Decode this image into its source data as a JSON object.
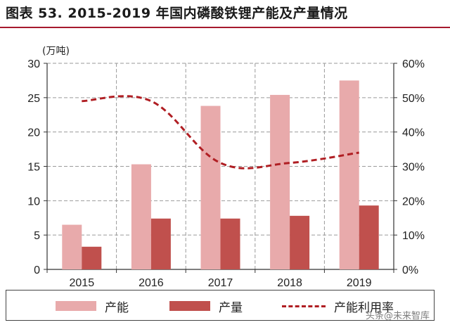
{
  "title": "图表 53. 2015-2019 年国内磷酸铁锂产能及产量情况",
  "watermark": "头条@未来智库",
  "chart_data": {
    "type": "bar",
    "categories": [
      "2015",
      "2016",
      "2017",
      "2018",
      "2019"
    ],
    "y_left": {
      "unit": "(万吨)",
      "range": [
        0,
        30
      ],
      "ticks": [
        "0",
        "5",
        "10",
        "15",
        "20",
        "25",
        "30"
      ]
    },
    "y_right": {
      "range": [
        0,
        0.6
      ],
      "ticks": [
        "0%",
        "10%",
        "20%",
        "30%",
        "40%",
        "50%",
        "60%"
      ]
    },
    "grid": "horizontal dashed",
    "legend_position": "bottom",
    "series": [
      {
        "name": "产能",
        "type": "bar",
        "axis": "left",
        "color": "#e8aaab",
        "values": [
          6.5,
          15.3,
          23.8,
          25.4,
          27.5
        ]
      },
      {
        "name": "产量",
        "type": "bar",
        "axis": "left",
        "color": "#c0504d",
        "values": [
          3.3,
          7.4,
          7.4,
          7.8,
          9.3
        ]
      },
      {
        "name": "产能利用率",
        "type": "line",
        "axis": "right",
        "color": "#b01e23",
        "style": "dashed",
        "values": [
          0.49,
          0.49,
          0.31,
          0.31,
          0.34
        ]
      }
    ]
  }
}
